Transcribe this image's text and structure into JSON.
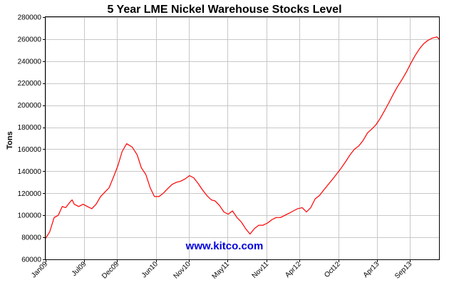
{
  "chart_data": {
    "type": "line",
    "title": "5 Year LME Nickel Warehouse Stocks Level",
    "xlabel": "",
    "ylabel": "Tons",
    "ylim": [
      60000,
      280000
    ],
    "y_ticks": [
      60000,
      80000,
      100000,
      120000,
      140000,
      160000,
      180000,
      200000,
      220000,
      240000,
      260000,
      280000
    ],
    "y_tick_labels": [
      "60000",
      "80000",
      "100000",
      "120000",
      "140000",
      "160000",
      "180000",
      "200000",
      "220000",
      "240000",
      "260000",
      "280000"
    ],
    "x_tick_labels": [
      "Jan09",
      "Jul09",
      "Dec09",
      "Jun10",
      "Nov10",
      "May11",
      "Nov11",
      "Apr12",
      "Oct12",
      "Apr13",
      "Sep13"
    ],
    "x_ticks": [
      "2009-01-01",
      "2009-07-01",
      "2009-12-01",
      "2010-06-01",
      "2010-11-01",
      "2011-05-01",
      "2011-11-01",
      "2012-04-01",
      "2012-10-01",
      "2013-04-01",
      "2013-09-01"
    ],
    "xlim": [
      "2009-01-01",
      "2014-01-15"
    ],
    "grid": true,
    "watermark": "www.kitco.com",
    "series": [
      {
        "color": "#ff0000",
        "x": [
          "2009-01-01",
          "2009-01-20",
          "2009-02-10",
          "2009-03-01",
          "2009-03-20",
          "2009-04-05",
          "2009-04-25",
          "2009-05-05",
          "2009-05-15",
          "2009-06-05",
          "2009-06-25",
          "2009-07-15",
          "2009-08-05",
          "2009-08-25",
          "2009-09-15",
          "2009-10-05",
          "2009-10-25",
          "2009-11-15",
          "2009-12-05",
          "2009-12-25",
          "2010-01-15",
          "2010-02-10",
          "2010-03-05",
          "2010-03-25",
          "2010-04-15",
          "2010-05-05",
          "2010-05-25",
          "2010-06-15",
          "2010-07-05",
          "2010-07-25",
          "2010-08-15",
          "2010-09-05",
          "2010-09-25",
          "2010-10-15",
          "2010-11-05",
          "2010-11-25",
          "2010-12-15",
          "2011-01-05",
          "2011-01-25",
          "2011-02-15",
          "2011-03-05",
          "2011-03-25",
          "2011-04-15",
          "2011-05-05",
          "2011-05-25",
          "2011-06-15",
          "2011-07-05",
          "2011-07-25",
          "2011-08-15",
          "2011-09-05",
          "2011-09-25",
          "2011-10-15",
          "2011-11-05",
          "2011-11-25",
          "2011-12-15",
          "2012-01-05",
          "2012-01-25",
          "2012-02-15",
          "2012-03-05",
          "2012-03-25",
          "2012-04-15",
          "2012-05-05",
          "2012-05-25",
          "2012-06-15",
          "2012-07-05",
          "2012-07-25",
          "2012-08-15",
          "2012-09-05",
          "2012-09-25",
          "2012-10-15",
          "2012-11-05",
          "2012-11-25",
          "2012-12-15",
          "2013-01-05",
          "2013-01-25",
          "2013-02-15",
          "2013-03-05",
          "2013-03-25",
          "2013-04-15",
          "2013-05-05",
          "2013-05-25",
          "2013-06-15",
          "2013-07-05",
          "2013-07-25",
          "2013-08-15",
          "2013-09-05",
          "2013-09-25",
          "2013-10-15",
          "2013-11-05",
          "2013-11-25",
          "2013-12-15",
          "2014-01-05",
          "2014-01-15"
        ],
        "values": [
          79000,
          85000,
          98000,
          100000,
          108000,
          107000,
          112000,
          114000,
          110000,
          108000,
          110000,
          108000,
          106000,
          110000,
          117000,
          121000,
          125000,
          135000,
          145000,
          158000,
          165000,
          162000,
          155000,
          143000,
          137000,
          125000,
          117000,
          117000,
          120000,
          124000,
          128000,
          130000,
          131000,
          133000,
          136000,
          134000,
          129000,
          123000,
          118000,
          114000,
          113000,
          109000,
          103000,
          101000,
          104000,
          98000,
          94000,
          88000,
          83000,
          88000,
          91000,
          91000,
          93000,
          96000,
          98000,
          98000,
          100000,
          102000,
          104000,
          106000,
          107000,
          103000,
          107000,
          115000,
          118000,
          123000,
          128000,
          133000,
          138000,
          143000,
          149000,
          155000,
          160000,
          163000,
          168000,
          175000,
          178000,
          182000,
          188000,
          195000,
          202000,
          210000,
          217000,
          223000,
          230000,
          238000,
          245000,
          251000,
          256000,
          259000,
          261000,
          262000,
          260000
        ]
      }
    ]
  }
}
